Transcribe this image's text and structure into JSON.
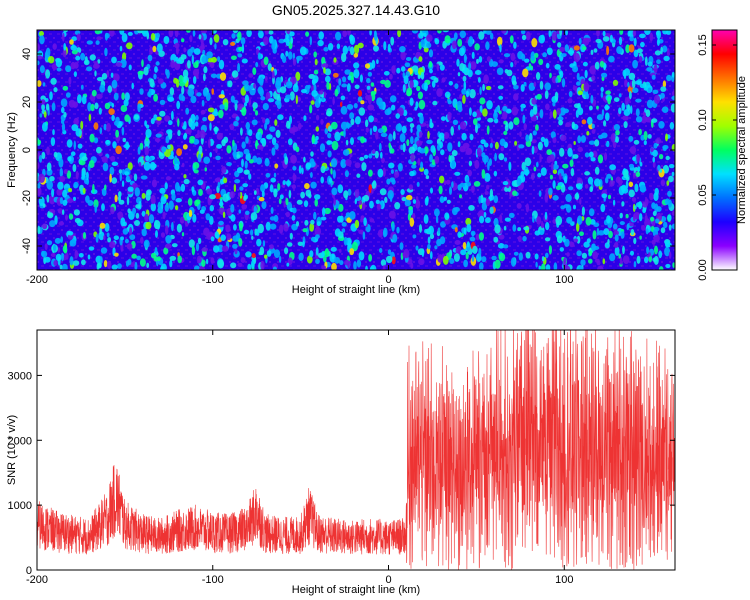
{
  "title": "GN05.2025.327.14.43.G10",
  "chart_data": [
    {
      "type": "heatmap",
      "xlabel": "Height of straight line (km)",
      "ylabel": "Frequency (Hz)",
      "xlim": [
        -200,
        163
      ],
      "ylim": [
        -50,
        50
      ],
      "x_ticks": [
        -200,
        -100,
        0,
        100
      ],
      "x_tick_labels": [
        "-200",
        "-100",
        "0",
        "100"
      ],
      "y_ticks": [
        -40,
        -20,
        0,
        20,
        40
      ],
      "y_tick_labels": [
        "-40",
        "-20",
        "0",
        "20",
        "40"
      ],
      "colorbar": {
        "label": "Normalized spectral amplitude",
        "range": [
          0,
          0.16
        ],
        "ticks": [
          0,
          0.05,
          0.1,
          0.15
        ],
        "tick_labels": [
          "0.00",
          "0.05",
          "0.10",
          "0.15"
        ],
        "colormap": [
          "#ffffff",
          "#8a00ff",
          "#1d00ff",
          "#0070ff",
          "#00e0ff",
          "#00ff60",
          "#a0ff00",
          "#ffe000",
          "#ff7000",
          "#ff0000",
          "#ff00b0"
        ]
      },
      "grid": false
    },
    {
      "type": "line",
      "xlabel": "Height of straight line (km)",
      "ylabel": "SNR (10 * v/v)",
      "xlim": [
        -200,
        163
      ],
      "ylim": [
        0,
        3700
      ],
      "x_ticks": [
        -200,
        -100,
        0,
        100
      ],
      "x_tick_labels": [
        "-200",
        "-100",
        "0",
        "100"
      ],
      "y_ticks": [
        0,
        1000,
        2000,
        3000
      ],
      "y_tick_labels": [
        "0",
        "1000",
        "2000",
        "3000"
      ],
      "line_color": "#ee3333",
      "grid": false,
      "series": [
        {
          "x": [
            -200,
            -190,
            -180,
            -170,
            -160,
            -155,
            -150,
            -140,
            -130,
            -120,
            -110,
            -100,
            -90,
            -80,
            -75,
            -70,
            -60,
            -50,
            -45,
            -40,
            -30,
            -20,
            -10,
            0,
            5,
            10,
            11,
            20,
            30,
            40,
            50,
            60,
            70,
            80,
            90,
            100,
            110,
            120,
            130,
            140,
            150,
            163
          ],
          "values": [
            700,
            600,
            550,
            520,
            800,
            1150,
            700,
            560,
            520,
            600,
            650,
            580,
            560,
            650,
            900,
            560,
            530,
            540,
            850,
            560,
            520,
            500,
            520,
            500,
            510,
            520,
            1650,
            1700,
            1650,
            1600,
            1700,
            1800,
            1900,
            2100,
            2000,
            1900,
            1950,
            1900,
            1850,
            1800,
            1750,
            1700
          ]
        }
      ]
    }
  ]
}
